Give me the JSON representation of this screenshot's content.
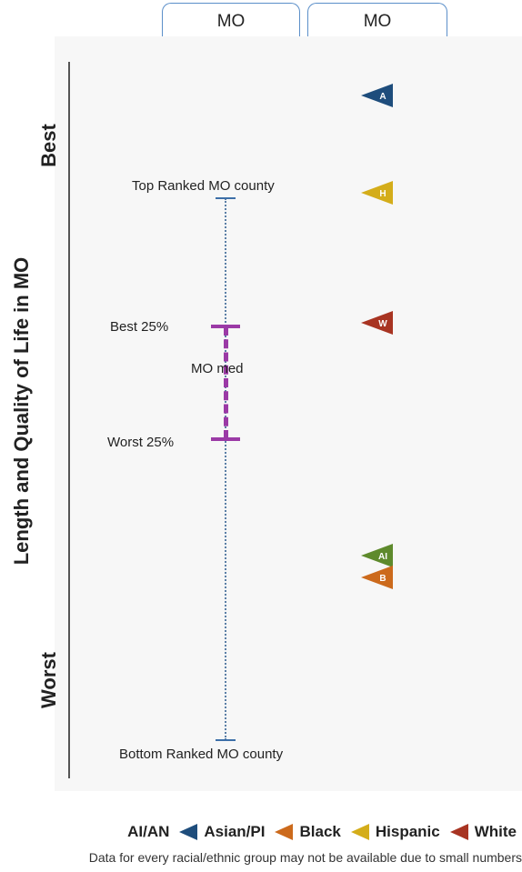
{
  "header": {
    "tabs": [
      "MO",
      "MO"
    ]
  },
  "chart_data": {
    "type": "scatter",
    "title": "",
    "ylabel": "Length and Quality of Life in MO",
    "axis_ends": {
      "top": "Best",
      "bottom": "Worst"
    },
    "reference_labels": {
      "top": "Top Ranked MO county",
      "best_quartile": "Best 25%",
      "median": "MO med",
      "worst_quartile": "Worst 25%",
      "bottom": "Bottom Ranked MO county"
    },
    "scale": {
      "top": 0,
      "bottom": 100
    },
    "reference_values": {
      "top": 0,
      "best_quartile": 24,
      "worst_quartile": 45,
      "bottom": 100
    },
    "series": [
      {
        "name": "AI/AN",
        "letter": "AI",
        "color": "#5e8a2c",
        "value": 66
      },
      {
        "name": "Asian/PI",
        "letter": "A",
        "color": "#1e4d7c",
        "value": -19
      },
      {
        "name": "Black",
        "letter": "B",
        "color": "#cc6a1c",
        "value": 70
      },
      {
        "name": "Hispanic",
        "letter": "H",
        "color": "#d4ad1a",
        "value": -1
      },
      {
        "name": "White",
        "letter": "W",
        "color": "#a83422",
        "value": 23
      }
    ]
  },
  "legend": {
    "items": [
      {
        "label": "AI/AN",
        "color": "#5e8a2c"
      },
      {
        "label": "Asian/PI",
        "color": "#1e4d7c"
      },
      {
        "label": "Black",
        "color": "#cc6a1c"
      },
      {
        "label": "Hispanic",
        "color": "#d4ad1a"
      },
      {
        "label": "White",
        "color": "#a83422"
      }
    ]
  },
  "footnote": "Data for every racial/ethnic group may not be available due to small numbers"
}
